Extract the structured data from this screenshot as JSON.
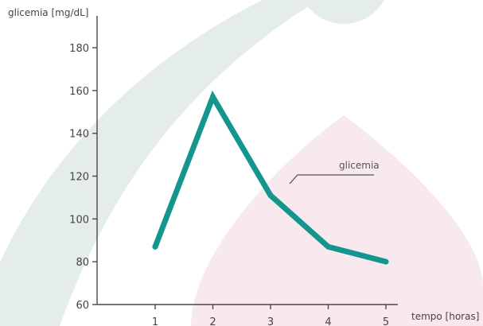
{
  "chart_data": {
    "type": "line",
    "x": [
      1,
      2,
      3,
      4,
      5
    ],
    "series": [
      {
        "name": "glicemia",
        "values": [
          87,
          157,
          111,
          87,
          80
        ]
      }
    ],
    "xlabel": "tempo [horas]",
    "ylabel": "glicemia [mg/dL]",
    "xticks": [
      1,
      2,
      3,
      4,
      5
    ],
    "yticks": [
      60,
      80,
      100,
      120,
      140,
      160,
      180
    ],
    "xlim": [
      0,
      5.5
    ],
    "ylim": [
      60,
      190
    ],
    "grid": false,
    "legend": "callout-right"
  },
  "colors": {
    "line": "#14968f",
    "background_teal_shape": "#e5ecec",
    "background_pink_shape": "#f8e9ee"
  }
}
